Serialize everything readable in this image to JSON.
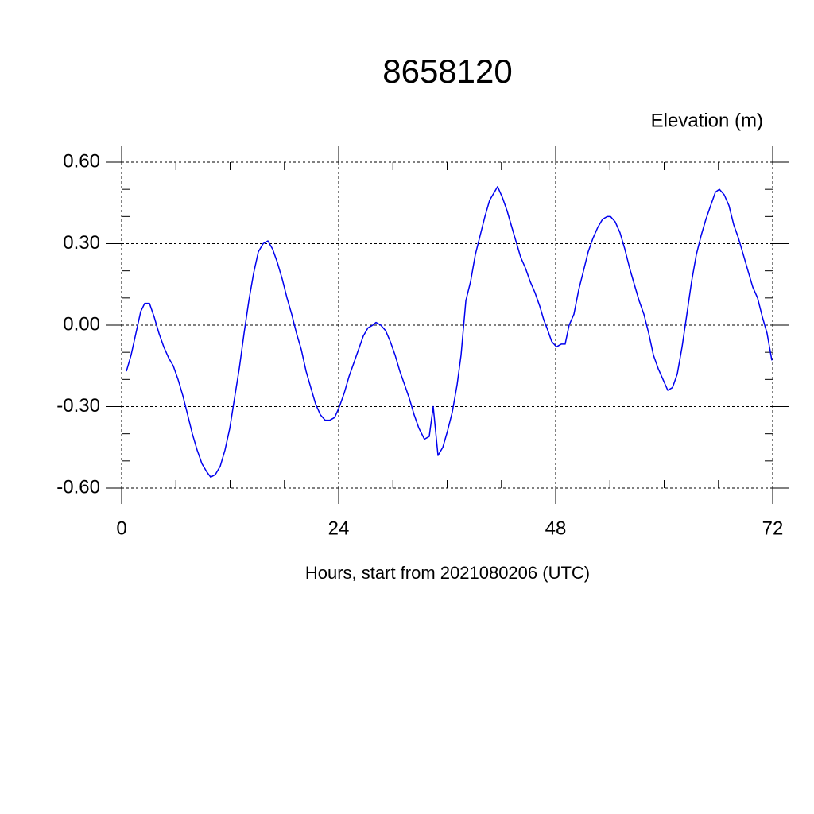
{
  "chart_data": {
    "type": "line",
    "title": "8658120",
    "subtitle": "Elevation (m)",
    "x_label": "Hours, start from 2021080206 (UTC)",
    "xlim": [
      0,
      72
    ],
    "xticks": [
      0,
      24,
      48,
      72
    ],
    "ylim": [
      -0.6,
      0.6
    ],
    "yticks": [
      {
        "value": -0.6,
        "label": "-0.60"
      },
      {
        "value": -0.3,
        "label": "-0.30"
      },
      {
        "value": 0,
        "label": "0.00"
      },
      {
        "value": 0.3,
        "label": "0.30"
      },
      {
        "value": 0.6,
        "label": "0.60"
      }
    ],
    "grid": true,
    "series": [
      {
        "color": "#0000ee",
        "x": [
          0.53,
          1.05,
          1.58,
          2.11,
          2.55,
          3.08,
          3.6,
          4.13,
          4.66,
          5.19,
          5.71,
          6.24,
          6.77,
          7.3,
          7.82,
          8.35,
          8.88,
          9.41,
          9.85,
          10.37,
          10.9,
          11.43,
          11.96,
          12.48,
          13.01,
          13.54,
          14.07,
          14.59,
          15.12,
          15.65,
          16.18,
          16.7,
          17.23,
          17.76,
          18.29,
          18.81,
          19.34,
          19.87,
          20.4,
          20.92,
          21.45,
          21.98,
          22.51,
          23.03,
          23.56,
          24.09,
          24.62,
          25.14,
          25.67,
          26.2,
          26.73,
          27.25,
          27.78,
          28.13,
          28.66,
          29.19,
          29.71,
          30.24,
          30.77,
          31.3,
          31.82,
          32.35,
          32.88,
          33.49,
          34.02,
          34.46,
          34.99,
          35.52,
          36.04,
          36.57,
          37.1,
          37.54,
          38.07,
          38.59,
          39.12,
          39.65,
          40.18,
          40.7,
          41.23,
          41.58,
          42.11,
          42.64,
          43.16,
          43.69,
          44.13,
          44.66,
          45.19,
          45.71,
          46.24,
          46.68,
          47.03,
          47.56,
          48.09,
          48.62,
          49.05,
          49.49,
          50.02,
          50.55,
          51.08,
          51.6,
          52.13,
          52.66,
          53.19,
          53.71,
          54.07,
          54.59,
          55.12,
          55.65,
          56.18,
          56.7,
          57.23,
          57.76,
          58.29,
          58.81,
          59.34,
          59.87,
          60.4,
          60.92,
          61.45,
          61.98,
          62.51,
          63.03,
          63.56,
          64.09,
          64.62,
          65.14,
          65.67,
          66.11,
          66.64,
          67.17,
          67.69,
          68.22,
          68.75,
          69.27,
          69.8,
          70.33,
          70.86,
          71.38,
          71.91
        ],
        "values": [
          -0.17,
          -0.11,
          -0.03,
          0.05,
          0.08,
          0.08,
          0.03,
          -0.03,
          -0.08,
          -0.12,
          -0.15,
          -0.2,
          -0.26,
          -0.33,
          -0.4,
          -0.46,
          -0.51,
          -0.54,
          -0.56,
          -0.55,
          -0.52,
          -0.46,
          -0.38,
          -0.27,
          -0.16,
          -0.03,
          0.09,
          0.19,
          0.27,
          0.3,
          0.31,
          0.28,
          0.23,
          0.17,
          0.1,
          0.04,
          -0.03,
          -0.09,
          -0.17,
          -0.23,
          -0.29,
          -0.33,
          -0.35,
          -0.35,
          -0.34,
          -0.3,
          -0.25,
          -0.19,
          -0.14,
          -0.09,
          -0.04,
          -0.01,
          0.0,
          0.01,
          0.0,
          -0.02,
          -0.06,
          -0.11,
          -0.17,
          -0.22,
          -0.27,
          -0.33,
          -0.38,
          -0.42,
          -0.41,
          -0.3,
          -0.48,
          -0.45,
          -0.39,
          -0.32,
          -0.22,
          -0.11,
          0.09,
          0.16,
          0.26,
          0.33,
          0.4,
          0.46,
          0.49,
          0.51,
          0.47,
          0.42,
          0.36,
          0.3,
          0.25,
          0.21,
          0.16,
          0.12,
          0.07,
          0.02,
          -0.01,
          -0.06,
          -0.08,
          -0.07,
          -0.07,
          0.0,
          0.04,
          0.13,
          0.2,
          0.27,
          0.32,
          0.36,
          0.39,
          0.4,
          0.4,
          0.38,
          0.34,
          0.28,
          0.21,
          0.15,
          0.09,
          0.04,
          -0.03,
          -0.11,
          -0.16,
          -0.2,
          -0.24,
          -0.23,
          -0.18,
          -0.08,
          0.04,
          0.16,
          0.26,
          0.33,
          0.39,
          0.44,
          0.49,
          0.5,
          0.48,
          0.44,
          0.37,
          0.32,
          0.26,
          0.2,
          0.14,
          0.1,
          0.03,
          -0.03,
          -0.13
        ]
      }
    ]
  }
}
